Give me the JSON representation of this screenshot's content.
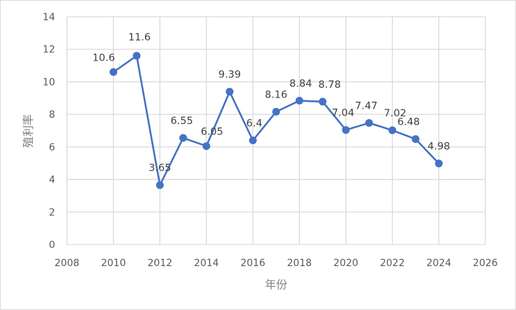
{
  "chart_data": {
    "type": "scatter",
    "title": "",
    "xlabel": "年份",
    "ylabel": "殖利率",
    "xlim": [
      2008,
      2026
    ],
    "ylim": [
      0,
      14
    ],
    "x_ticks": [
      2008,
      2010,
      2012,
      2014,
      2016,
      2018,
      2020,
      2022,
      2024,
      2026
    ],
    "y_ticks": [
      0,
      2,
      4,
      6,
      8,
      10,
      12,
      14
    ],
    "grid": true,
    "legend": null,
    "series": [
      {
        "name": "殖利率",
        "color": "#4472c4",
        "mode": "lines+markers",
        "x": [
          2010,
          2011,
          2012,
          2013,
          2014,
          2015,
          2016,
          2017,
          2018,
          2019,
          2020,
          2021,
          2022,
          2023,
          2024
        ],
        "values": [
          10.6,
          11.6,
          3.65,
          6.55,
          6.05,
          9.39,
          6.4,
          8.16,
          8.84,
          8.78,
          7.04,
          7.47,
          7.02,
          6.48,
          4.98
        ],
        "labels": [
          "10.6",
          "11.6",
          "3.65",
          "6.55",
          "6.05",
          "9.39",
          "6.4",
          "8.16",
          "8.84",
          "8.78",
          "7.04",
          "7.47",
          "7.02",
          "6.48",
          "4.98"
        ]
      }
    ]
  }
}
